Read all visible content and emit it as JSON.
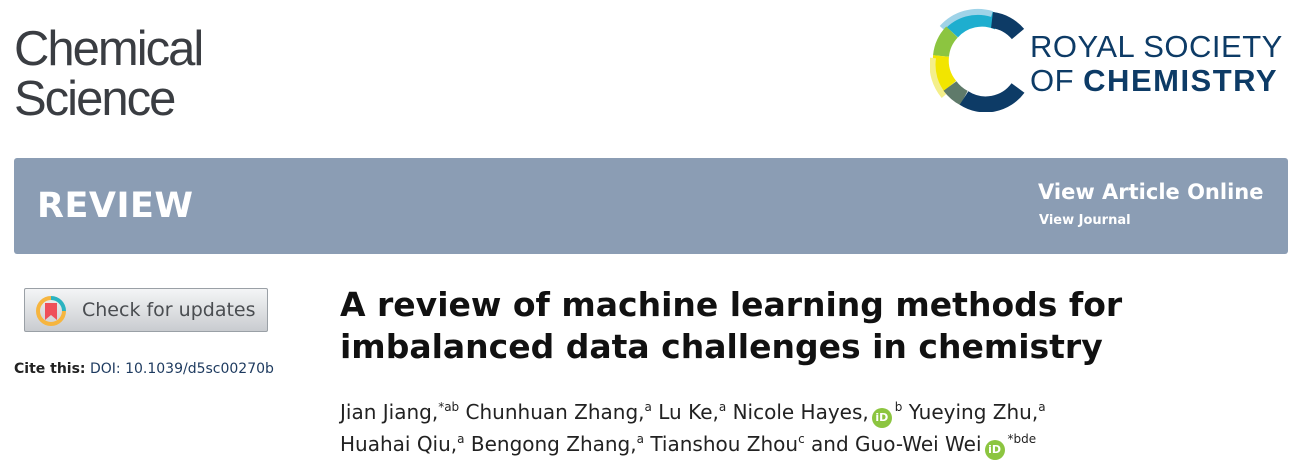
{
  "journal": {
    "line1": "Chemical",
    "line2": "Science"
  },
  "logo": {
    "line1": "ROYAL SOCIETY",
    "line2_prefix": "OF ",
    "line2_bold": "CHEMISTRY"
  },
  "banner": {
    "type": "REVIEW",
    "view_article_online": "View Article Online",
    "view_journal": "View Journal",
    "color": "#8b9db4"
  },
  "check_updates": {
    "label": "Check for updates"
  },
  "cite": {
    "label": "Cite this:",
    "doi": "DOI: 10.1039/d5sc00270b"
  },
  "article": {
    "title": "A review of machine learning methods for imbalanced data challenges in chemistry",
    "authors": [
      {
        "name": "Jian Jiang,",
        "sup": "*ab",
        "orcid": false
      },
      {
        "name": "Chunhuan Zhang,",
        "sup": "a",
        "orcid": false
      },
      {
        "name": "Lu Ke,",
        "sup": "a",
        "orcid": false
      },
      {
        "name": "Nicole Hayes,",
        "sup": "b",
        "orcid": true
      },
      {
        "name": "Yueying Zhu,",
        "sup": "a",
        "orcid": false,
        "break_after": true
      },
      {
        "name": "Huahai Qiu,",
        "sup": "a",
        "orcid": false
      },
      {
        "name": "Bengong Zhang,",
        "sup": "a",
        "orcid": false
      },
      {
        "name": "Tianshou Zhou",
        "sup": "c",
        "orcid": false
      },
      {
        "name": "and Guo-Wei Wei",
        "sup": "*bde",
        "orcid": true
      }
    ],
    "orcid_label": "iD"
  }
}
